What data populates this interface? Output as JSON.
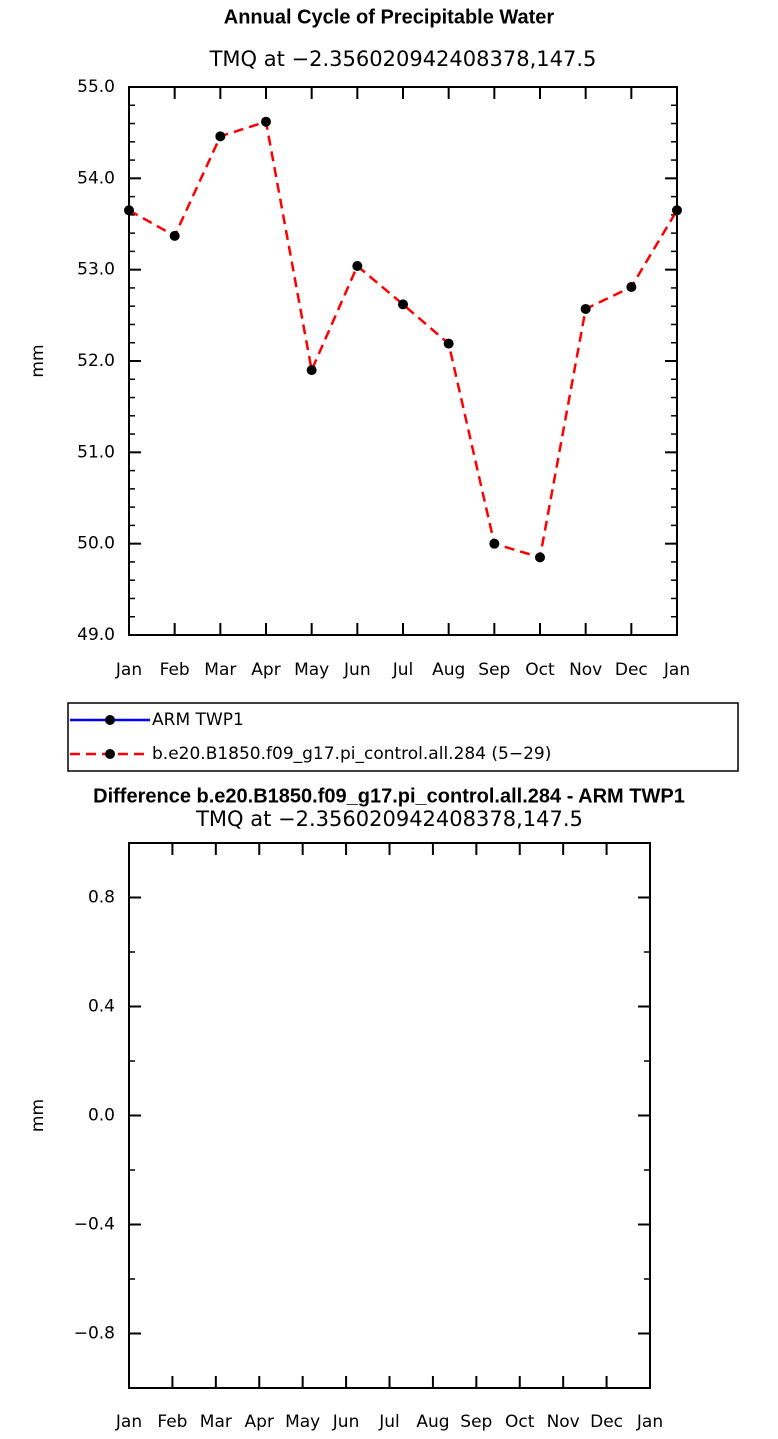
{
  "chart_data": [
    {
      "type": "line",
      "title": "Annual Cycle of Precipitable Water",
      "subtitle": "TMQ at −2.356020942408378,147.5",
      "ylabel": "mm",
      "categories": [
        "Jan",
        "Feb",
        "Mar",
        "Apr",
        "May",
        "Jun",
        "Jul",
        "Aug",
        "Sep",
        "Oct",
        "Nov",
        "Dec",
        "Jan"
      ],
      "series": [
        {
          "name": "ARM TWP1",
          "color": "#0000ff",
          "dashed": false,
          "values": [
            null,
            null,
            null,
            null,
            null,
            null,
            null,
            null,
            null,
            null,
            null,
            null,
            null
          ]
        },
        {
          "name": "b.e20.B1850.f09_g17.pi_control.all.284 (5−29)",
          "color": "#ff0000",
          "dashed": true,
          "values": [
            53.65,
            53.37,
            54.46,
            54.62,
            51.9,
            53.04,
            52.62,
            52.19,
            50.0,
            49.85,
            52.57,
            52.81,
            53.65
          ]
        }
      ],
      "ylim": [
        49,
        55
      ],
      "yticks": [
        {
          "value": 49,
          "label": "49.0"
        },
        {
          "value": 50,
          "label": "50.0"
        },
        {
          "value": 51,
          "label": "51.0"
        },
        {
          "value": 52,
          "label": "52.0"
        },
        {
          "value": 53,
          "label": "53.0"
        },
        {
          "value": 54,
          "label": "54.0"
        },
        {
          "value": 55,
          "label": "55.0"
        }
      ],
      "legend": "bottom"
    },
    {
      "type": "line",
      "title": "Difference b.e20.B1850.f09_g17.pi_control.all.284 - ARM TWP1",
      "subtitle": "TMQ at −2.356020942408378,147.5",
      "ylabel": "mm",
      "categories": [
        "Jan",
        "Feb",
        "Mar",
        "Apr",
        "May",
        "Jun",
        "Jul",
        "Aug",
        "Sep",
        "Oct",
        "Nov",
        "Dec",
        "Jan"
      ],
      "series": [],
      "ylim": [
        -1,
        1
      ],
      "yticks": [
        {
          "value": -0.8,
          "label": "−0.8"
        },
        {
          "value": -0.4,
          "label": "−0.4"
        },
        {
          "value": 0,
          "label": "0.0"
        },
        {
          "value": 0.4,
          "label": "0.4"
        },
        {
          "value": 0.8,
          "label": "0.8"
        }
      ]
    }
  ]
}
